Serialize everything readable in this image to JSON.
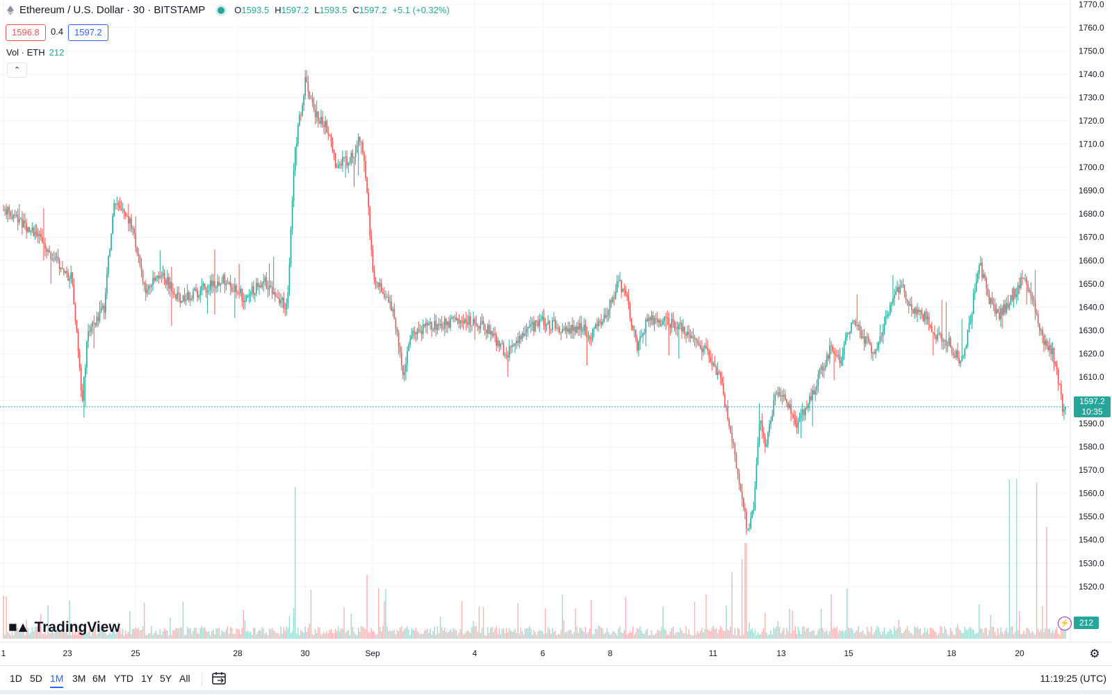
{
  "header": {
    "symbol": "Ethereum / U.S. Dollar · 30 · BITSTAMP",
    "open_label": "O",
    "open": "1593.5",
    "high_label": "H",
    "high": "1597.2",
    "low_label": "L",
    "low": "1593.5",
    "close_label": "C",
    "close": "1597.2",
    "change": "+5.1 (+0.32%)",
    "bid": "1596.8",
    "spread": "0.4",
    "ask": "1597.2"
  },
  "volume_legend": {
    "label": "Vol · ETH",
    "value": "212"
  },
  "logo": {
    "text": "TradingView"
  },
  "last_price": {
    "price": "1597.2",
    "countdown": "10:35",
    "value": 1597.2
  },
  "volume_label": "212",
  "bottom_bar": {
    "ranges": [
      "1D",
      "5D",
      "1M",
      "3M",
      "6M",
      "YTD",
      "1Y",
      "5Y",
      "All"
    ],
    "active": "1M",
    "clock": "11:19:25 (UTC)"
  },
  "colors": {
    "up": "#26a69a",
    "down": "#ef5350",
    "grid": "#f0f3fa",
    "text": "#131722",
    "accent": "#2962ff"
  },
  "chart_data": {
    "type": "candlestick",
    "symbol": "ETHUSD",
    "interval": "30",
    "x_ticks": [
      "1",
      "23",
      "25",
      "28",
      "30",
      "Sep",
      "4",
      "6",
      "8",
      "11",
      "13",
      "15",
      "18",
      "20"
    ],
    "y_ticks": [
      1520,
      1530,
      1540,
      1550,
      1560,
      1570,
      1580,
      1590,
      1600,
      1610,
      1620,
      1630,
      1640,
      1650,
      1660,
      1670,
      1680,
      1690,
      1700,
      1710,
      1720,
      1730,
      1740,
      1750,
      1760,
      1770
    ],
    "ylim": [
      1511,
      1771
    ],
    "grid": true,
    "last_value": 1597.2,
    "price_path": [
      {
        "d": 0.0,
        "p": 1682
      },
      {
        "d": 0.8,
        "p": 1672
      },
      {
        "d": 1.3,
        "p": 1660
      },
      {
        "d": 1.7,
        "p": 1652
      },
      {
        "d": 1.85,
        "p": 1625
      },
      {
        "d": 1.95,
        "p": 1598
      },
      {
        "d": 2.1,
        "p": 1630
      },
      {
        "d": 2.5,
        "p": 1640
      },
      {
        "d": 2.75,
        "p": 1685
      },
      {
        "d": 3.2,
        "p": 1675
      },
      {
        "d": 3.5,
        "p": 1648
      },
      {
        "d": 4.0,
        "p": 1653
      },
      {
        "d": 4.4,
        "p": 1643
      },
      {
        "d": 5.0,
        "p": 1648
      },
      {
        "d": 5.5,
        "p": 1652
      },
      {
        "d": 6.0,
        "p": 1644
      },
      {
        "d": 6.5,
        "p": 1651
      },
      {
        "d": 7.05,
        "p": 1640
      },
      {
        "d": 7.25,
        "p": 1708
      },
      {
        "d": 7.5,
        "p": 1737
      },
      {
        "d": 7.75,
        "p": 1723
      },
      {
        "d": 8.1,
        "p": 1716
      },
      {
        "d": 8.25,
        "p": 1702
      },
      {
        "d": 8.7,
        "p": 1704
      },
      {
        "d": 8.85,
        "p": 1714
      },
      {
        "d": 9.0,
        "p": 1698
      },
      {
        "d": 9.1,
        "p": 1675
      },
      {
        "d": 9.2,
        "p": 1652
      },
      {
        "d": 9.6,
        "p": 1644
      },
      {
        "d": 9.85,
        "p": 1622
      },
      {
        "d": 9.95,
        "p": 1610
      },
      {
        "d": 10.1,
        "p": 1628
      },
      {
        "d": 10.5,
        "p": 1631
      },
      {
        "d": 11.0,
        "p": 1633
      },
      {
        "d": 11.5,
        "p": 1635
      },
      {
        "d": 12.0,
        "p": 1631
      },
      {
        "d": 12.5,
        "p": 1620
      },
      {
        "d": 12.9,
        "p": 1627
      },
      {
        "d": 13.3,
        "p": 1634
      },
      {
        "d": 13.7,
        "p": 1632
      },
      {
        "d": 14.0,
        "p": 1629
      },
      {
        "d": 14.3,
        "p": 1632
      },
      {
        "d": 14.6,
        "p": 1628
      },
      {
        "d": 15.0,
        "p": 1638
      },
      {
        "d": 15.3,
        "p": 1651
      },
      {
        "d": 15.5,
        "p": 1643
      },
      {
        "d": 15.75,
        "p": 1622
      },
      {
        "d": 16.0,
        "p": 1634
      },
      {
        "d": 16.5,
        "p": 1634
      },
      {
        "d": 17.0,
        "p": 1630
      },
      {
        "d": 17.3,
        "p": 1624
      },
      {
        "d": 17.6,
        "p": 1618
      },
      {
        "d": 17.85,
        "p": 1608
      },
      {
        "d": 18.0,
        "p": 1592
      },
      {
        "d": 18.15,
        "p": 1580
      },
      {
        "d": 18.35,
        "p": 1560
      },
      {
        "d": 18.5,
        "p": 1544
      },
      {
        "d": 18.65,
        "p": 1553
      },
      {
        "d": 18.8,
        "p": 1592
      },
      {
        "d": 18.95,
        "p": 1578
      },
      {
        "d": 19.2,
        "p": 1605
      },
      {
        "d": 19.5,
        "p": 1598
      },
      {
        "d": 19.7,
        "p": 1590
      },
      {
        "d": 20.0,
        "p": 1598
      },
      {
        "d": 20.3,
        "p": 1612
      },
      {
        "d": 20.55,
        "p": 1622
      },
      {
        "d": 20.8,
        "p": 1618
      },
      {
        "d": 21.1,
        "p": 1635
      },
      {
        "d": 21.4,
        "p": 1626
      },
      {
        "d": 21.7,
        "p": 1620
      },
      {
        "d": 22.0,
        "p": 1638
      },
      {
        "d": 22.3,
        "p": 1650
      },
      {
        "d": 22.6,
        "p": 1638
      },
      {
        "d": 22.9,
        "p": 1636
      },
      {
        "d": 23.2,
        "p": 1628
      },
      {
        "d": 23.5,
        "p": 1625
      },
      {
        "d": 23.8,
        "p": 1616
      },
      {
        "d": 24.0,
        "p": 1630
      },
      {
        "d": 24.25,
        "p": 1660
      },
      {
        "d": 24.5,
        "p": 1643
      },
      {
        "d": 24.75,
        "p": 1636
      },
      {
        "d": 25.0,
        "p": 1642
      },
      {
        "d": 25.35,
        "p": 1653
      },
      {
        "d": 25.6,
        "p": 1642
      },
      {
        "d": 25.85,
        "p": 1626
      },
      {
        "d": 26.05,
        "p": 1622
      },
      {
        "d": 26.2,
        "p": 1612
      },
      {
        "d": 26.35,
        "p": 1593.5
      },
      {
        "d": 26.4,
        "p": 1597.2
      }
    ],
    "volume_spikes": [
      {
        "d": 7.25,
        "rel": 0.95
      },
      {
        "d": 9.05,
        "rel": 0.4
      },
      {
        "d": 13.9,
        "rel": 0.28
      },
      {
        "d": 18.1,
        "rel": 0.42
      },
      {
        "d": 18.35,
        "rel": 0.5
      },
      {
        "d": 18.45,
        "rel": 0.6
      },
      {
        "d": 25.0,
        "rel": 1.0
      },
      {
        "d": 25.2,
        "rel": 1.0
      },
      {
        "d": 25.7,
        "rel": 0.98
      },
      {
        "d": 25.95,
        "rel": 0.7
      }
    ]
  }
}
